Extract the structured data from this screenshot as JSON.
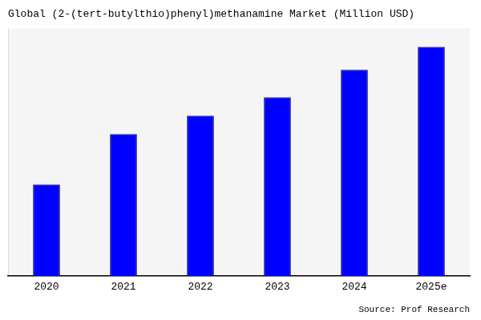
{
  "chart_data": {
    "type": "bar",
    "title": "Global (2-(tert-butylthio)phenyl)methanamine Market (Million USD)",
    "categories": [
      "2020",
      "2021",
      "2022",
      "2023",
      "2024",
      "2025e"
    ],
    "values": [
      1.0,
      1.55,
      1.75,
      1.95,
      2.25,
      2.5
    ],
    "color": "#0000FF",
    "ylim": [
      0,
      2.7
    ],
    "grid": false,
    "tick_labels": "x",
    "annotations": [
      "Source: Prof Research"
    ]
  }
}
